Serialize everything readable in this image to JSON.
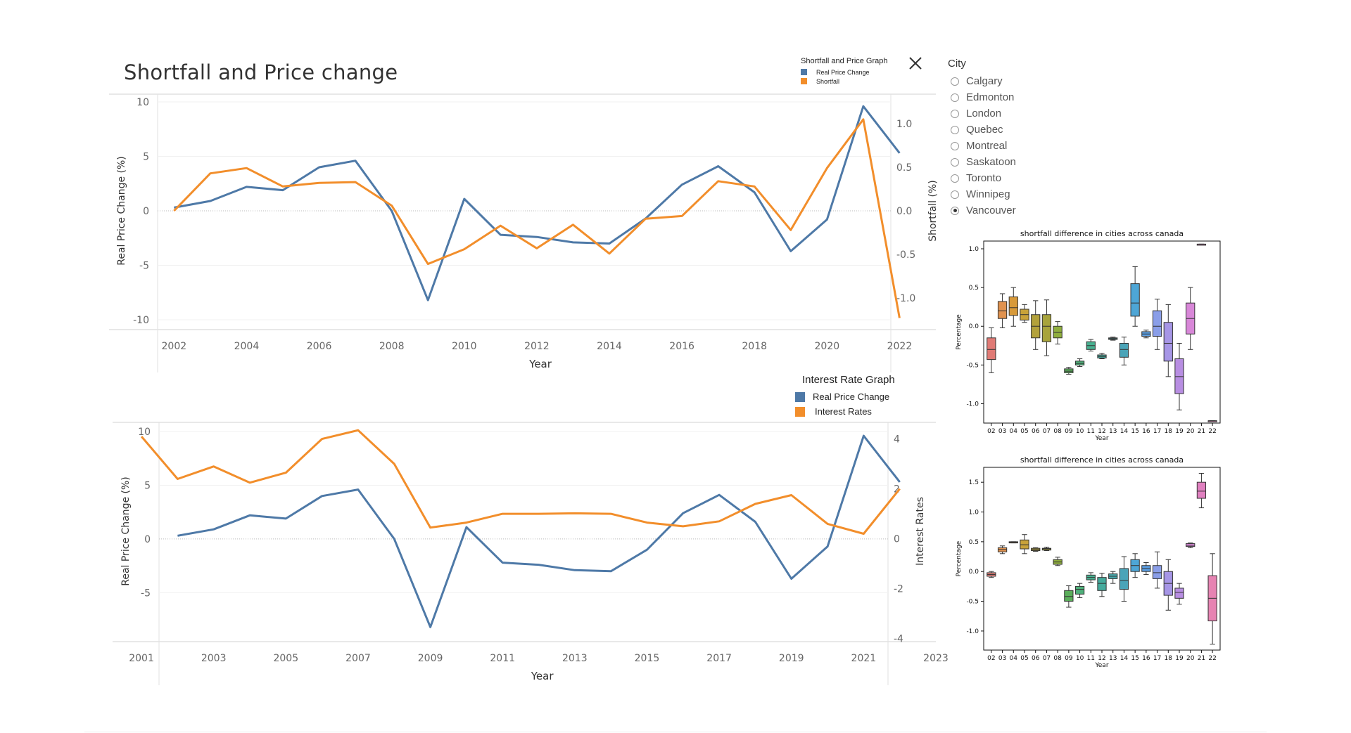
{
  "dashboard": {
    "title": "Shortfall and Price change"
  },
  "colors": {
    "blue": "#4e79a7",
    "orange": "#f28e2b"
  },
  "icons": {
    "close": "close-icon"
  },
  "chart1_legend": {
    "title": "Shortfall and Price Graph",
    "items": [
      "Real Price Change",
      "Shortfall"
    ]
  },
  "chart2_legend": {
    "title": "Interest Rate Graph",
    "items": [
      "Real Price Change",
      "Interest Rates"
    ]
  },
  "city_filter": {
    "title": "City",
    "options": [
      "Calgary",
      "Edmonton",
      "London",
      "Quebec",
      "Montreal",
      "Saskatoon",
      "Toronto",
      "Winnipeg",
      "Vancouver"
    ],
    "selected": "Vancouver"
  },
  "chart_data": [
    {
      "type": "line",
      "title": "",
      "xlabel": "Year",
      "ylabel": "Real Price Change (%)",
      "y2label": "Shortfall (%)",
      "xlim": [
        2000.5,
        2023.0
      ],
      "ylim": [
        -10,
        10
      ],
      "y2lim": [
        -1.25,
        1.25
      ],
      "x_ticks": [
        2002,
        2004,
        2006,
        2008,
        2010,
        2012,
        2014,
        2016,
        2018,
        2020,
        2022
      ],
      "y_ticks": [
        10,
        5,
        0,
        -5,
        -10
      ],
      "y2_ticks": [
        "1.0",
        "0.5",
        "0.0",
        "-0.5",
        "-1.0"
      ],
      "series": [
        {
          "name": "Real Price Change",
          "axis": "left",
          "x": [
            2002,
            2003,
            2004,
            2005,
            2006,
            2007,
            2008,
            2009,
            2010,
            2011,
            2012,
            2013,
            2014,
            2015,
            2016,
            2017,
            2018,
            2019,
            2020,
            2021,
            2022
          ],
          "values": [
            0.3,
            0.9,
            2.2,
            1.9,
            4.0,
            4.6,
            0.0,
            -8.2,
            1.1,
            -2.2,
            -2.4,
            -2.9,
            -3.0,
            -0.7,
            2.4,
            4.1,
            1.7,
            -3.7,
            -0.8,
            9.6,
            5.3
          ]
        },
        {
          "name": "Shortfall",
          "axis": "right",
          "x": [
            2002,
            2003,
            2004,
            2005,
            2006,
            2007,
            2008,
            2009,
            2010,
            2011,
            2012,
            2013,
            2014,
            2015,
            2016,
            2017,
            2018,
            2019,
            2020,
            2021,
            2022
          ],
          "values": [
            0.0,
            0.43,
            0.49,
            0.28,
            0.32,
            0.33,
            0.06,
            -0.61,
            -0.44,
            -0.17,
            -0.43,
            -0.16,
            -0.49,
            -0.09,
            -0.06,
            0.34,
            0.28,
            -0.22,
            0.49,
            1.05,
            -1.23
          ]
        }
      ]
    },
    {
      "type": "line",
      "title": "",
      "xlabel": "Year",
      "ylabel": "Real Price Change (%)",
      "y2label": "Interest Rates",
      "xlim": [
        2000.2,
        2023.0
      ],
      "ylim": [
        -8.57,
        10
      ],
      "y2lim": [
        -3.7,
        4.3
      ],
      "x_ticks": [
        2001,
        2003,
        2005,
        2007,
        2009,
        2011,
        2013,
        2015,
        2017,
        2019,
        2021,
        2023
      ],
      "y_ticks": [
        10,
        5,
        0,
        -5
      ],
      "y2_ticks": [
        "4",
        "2",
        "0",
        "-2",
        "-4"
      ],
      "series": [
        {
          "name": "Real Price Change",
          "axis": "left",
          "x": [
            2002,
            2003,
            2004,
            2005,
            2006,
            2007,
            2008,
            2009,
            2010,
            2011,
            2012,
            2013,
            2014,
            2015,
            2016,
            2017,
            2018,
            2019,
            2020,
            2021,
            2022
          ],
          "values": [
            0.3,
            0.9,
            2.2,
            1.9,
            4.0,
            4.6,
            0.0,
            -8.2,
            1.1,
            -2.2,
            -2.4,
            -2.9,
            -3.0,
            -1.0,
            2.4,
            4.1,
            1.6,
            -3.7,
            -0.7,
            9.6,
            5.3
          ]
        },
        {
          "name": "Interest Rates",
          "axis": "right",
          "x": [
            2001,
            2002,
            2003,
            2004,
            2005,
            2006,
            2007,
            2008,
            2009,
            2010,
            2011,
            2012,
            2013,
            2014,
            2015,
            2016,
            2017,
            2018,
            2019,
            2020,
            2021,
            2022
          ],
          "values": [
            4.1,
            2.4,
            2.9,
            2.25,
            2.65,
            4.0,
            4.35,
            3.0,
            0.45,
            0.65,
            1.0,
            1.0,
            1.02,
            1.0,
            0.65,
            0.5,
            0.7,
            1.4,
            1.75,
            0.6,
            0.2,
            2.0
          ]
        }
      ]
    },
    {
      "type": "box",
      "title": "shortfall difference in cities across canada",
      "xlabel": "Year",
      "ylabel": "Percentage",
      "ylim": [
        -1.25,
        1.1
      ],
      "y_ticks": [
        "1.0",
        "0.5",
        "0.0",
        "-0.5",
        "-1.0"
      ],
      "y_tick_values": [
        1.0,
        0.5,
        0.0,
        -0.5,
        -1.0
      ],
      "categories": [
        "02",
        "03",
        "04",
        "05",
        "06",
        "07",
        "08",
        "09",
        "10",
        "11",
        "12",
        "13",
        "14",
        "15",
        "16",
        "17",
        "18",
        "19",
        "20",
        "21",
        "22"
      ],
      "boxes": [
        {
          "min": -0.6,
          "q1": -0.43,
          "med": -0.3,
          "q3": -0.15,
          "max": -0.02,
          "color": "#e07a75"
        },
        {
          "min": -0.02,
          "q1": 0.1,
          "med": 0.2,
          "q3": 0.32,
          "max": 0.42,
          "color": "#e0924f"
        },
        {
          "min": 0.0,
          "q1": 0.14,
          "med": 0.24,
          "q3": 0.38,
          "max": 0.5,
          "color": "#d89a3a"
        },
        {
          "min": 0.05,
          "q1": 0.08,
          "med": 0.15,
          "q3": 0.22,
          "max": 0.28,
          "color": "#c8a23a"
        },
        {
          "min": -0.3,
          "q1": -0.15,
          "med": 0.0,
          "q3": 0.15,
          "max": 0.33,
          "color": "#b3a23b"
        },
        {
          "min": -0.38,
          "q1": -0.2,
          "med": 0.0,
          "q3": 0.15,
          "max": 0.34,
          "color": "#a8a43c"
        },
        {
          "min": -0.23,
          "q1": -0.15,
          "med": -0.08,
          "q3": 0.0,
          "max": 0.06,
          "color": "#8fae3e"
        },
        {
          "min": -0.62,
          "q1": -0.6,
          "med": -0.58,
          "q3": -0.55,
          "max": -0.53,
          "color": "#5aae5a"
        },
        {
          "min": -0.52,
          "q1": -0.5,
          "med": -0.48,
          "q3": -0.45,
          "max": -0.42,
          "color": "#4fb07a"
        },
        {
          "min": -0.32,
          "q1": -0.3,
          "med": -0.25,
          "q3": -0.2,
          "max": -0.17,
          "color": "#48b090"
        },
        {
          "min": -0.42,
          "q1": -0.41,
          "med": -0.39,
          "q3": -0.37,
          "max": -0.35,
          "color": "#45aa9c"
        },
        {
          "min": -0.18,
          "q1": -0.17,
          "med": -0.16,
          "q3": -0.15,
          "max": -0.14,
          "color": "#48a7ab"
        },
        {
          "min": -0.5,
          "q1": -0.4,
          "med": -0.3,
          "q3": -0.22,
          "max": -0.14,
          "color": "#4aa4b8"
        },
        {
          "min": 0.0,
          "q1": 0.13,
          "med": 0.3,
          "q3": 0.55,
          "max": 0.77,
          "color": "#4ea6d6"
        },
        {
          "min": -0.15,
          "q1": -0.13,
          "med": -0.1,
          "q3": -0.07,
          "max": -0.05,
          "color": "#5b9ee2"
        },
        {
          "min": -0.3,
          "q1": -0.13,
          "med": 0.0,
          "q3": 0.2,
          "max": 0.35,
          "color": "#8a9ee8"
        },
        {
          "min": -0.65,
          "q1": -0.45,
          "med": -0.22,
          "q3": 0.05,
          "max": 0.28,
          "color": "#a696e6"
        },
        {
          "min": -1.08,
          "q1": -0.87,
          "med": -0.65,
          "q3": -0.42,
          "max": -0.22,
          "color": "#b88ee2"
        },
        {
          "min": -0.3,
          "q1": -0.1,
          "med": 0.1,
          "q3": 0.3,
          "max": 0.5,
          "color": "#d887d8"
        },
        {
          "min": 1.06,
          "q1": 1.06,
          "med": 1.06,
          "q3": 1.06,
          "max": 1.06,
          "color": "#e080c0"
        },
        {
          "min": -1.22,
          "q1": -1.22,
          "med": -1.22,
          "q3": -1.22,
          "max": -1.22,
          "color": "#e683b2"
        }
      ]
    },
    {
      "type": "box",
      "title": "shortfall difference in cities across canada",
      "xlabel": "Year",
      "ylabel": "Percentage",
      "ylim": [
        -1.32,
        1.75
      ],
      "y_ticks": [
        "1.5",
        "1.0",
        "0.5",
        "0.0",
        "-0.5",
        "-1.0"
      ],
      "y_tick_values": [
        1.5,
        1.0,
        0.5,
        0.0,
        -0.5,
        -1.0
      ],
      "categories": [
        "02",
        "03",
        "04",
        "05",
        "06",
        "07",
        "08",
        "09",
        "10",
        "11",
        "12",
        "13",
        "14",
        "15",
        "16",
        "17",
        "18",
        "19",
        "20",
        "21",
        "22"
      ],
      "boxes": [
        {
          "min": -0.1,
          "q1": -0.08,
          "med": -0.05,
          "q3": -0.02,
          "max": 0.0,
          "color": "#e07a75"
        },
        {
          "min": 0.3,
          "q1": 0.33,
          "med": 0.37,
          "q3": 0.4,
          "max": 0.43,
          "color": "#e0924f"
        },
        {
          "min": 0.48,
          "q1": 0.48,
          "med": 0.49,
          "q3": 0.5,
          "max": 0.5,
          "color": "#d89a3a"
        },
        {
          "min": 0.3,
          "q1": 0.38,
          "med": 0.45,
          "q3": 0.53,
          "max": 0.62,
          "color": "#c8a23a"
        },
        {
          "min": 0.34,
          "q1": 0.35,
          "med": 0.37,
          "q3": 0.39,
          "max": 0.4,
          "color": "#b3a23b"
        },
        {
          "min": 0.35,
          "q1": 0.36,
          "med": 0.38,
          "q3": 0.39,
          "max": 0.41,
          "color": "#a8a43c"
        },
        {
          "min": 0.1,
          "q1": 0.12,
          "med": 0.16,
          "q3": 0.2,
          "max": 0.24,
          "color": "#8fae3e"
        },
        {
          "min": -0.6,
          "q1": -0.5,
          "med": -0.42,
          "q3": -0.32,
          "max": -0.24,
          "color": "#5aae5a"
        },
        {
          "min": -0.44,
          "q1": -0.38,
          "med": -0.3,
          "q3": -0.25,
          "max": -0.2,
          "color": "#4fb07a"
        },
        {
          "min": -0.18,
          "q1": -0.14,
          "med": -0.1,
          "q3": -0.06,
          "max": -0.02,
          "color": "#48b090"
        },
        {
          "min": -0.42,
          "q1": -0.32,
          "med": -0.2,
          "q3": -0.1,
          "max": -0.03,
          "color": "#45aa9c"
        },
        {
          "min": -0.2,
          "q1": -0.12,
          "med": -0.08,
          "q3": -0.04,
          "max": 0.0,
          "color": "#48a7ab"
        },
        {
          "min": -0.5,
          "q1": -0.3,
          "med": -0.15,
          "q3": 0.05,
          "max": 0.25,
          "color": "#4aa4b8"
        },
        {
          "min": -0.1,
          "q1": 0.0,
          "med": 0.1,
          "q3": 0.2,
          "max": 0.3,
          "color": "#4ea6d6"
        },
        {
          "min": -0.05,
          "q1": 0.0,
          "med": 0.05,
          "q3": 0.1,
          "max": 0.15,
          "color": "#5b9ee2"
        },
        {
          "min": -0.28,
          "q1": -0.12,
          "med": -0.02,
          "q3": 0.1,
          "max": 0.33,
          "color": "#8a9ee8"
        },
        {
          "min": -0.65,
          "q1": -0.4,
          "med": -0.2,
          "q3": 0.0,
          "max": 0.2,
          "color": "#a696e6"
        },
        {
          "min": -0.55,
          "q1": -0.45,
          "med": -0.35,
          "q3": -0.28,
          "max": -0.2,
          "color": "#b88ee2"
        },
        {
          "min": 0.4,
          "q1": 0.42,
          "med": 0.44,
          "q3": 0.47,
          "max": 0.48,
          "color": "#d887d8"
        },
        {
          "min": 1.07,
          "q1": 1.23,
          "med": 1.35,
          "q3": 1.5,
          "max": 1.65,
          "color": "#e080c0"
        },
        {
          "min": -1.22,
          "q1": -0.83,
          "med": -0.45,
          "q3": -0.07,
          "max": 0.3,
          "color": "#e683b2"
        }
      ]
    }
  ]
}
